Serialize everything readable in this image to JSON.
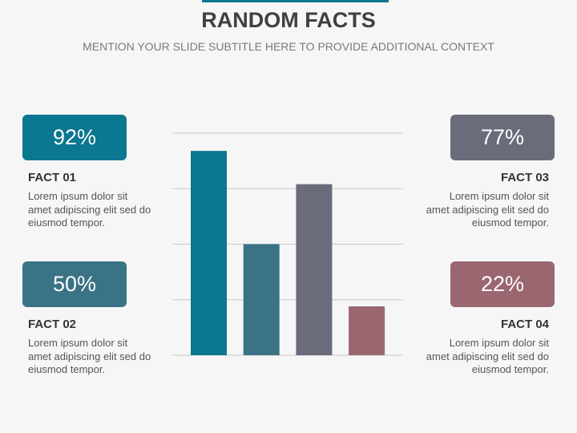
{
  "chart_data": {
    "type": "bar",
    "title": "RANDOM FACTS",
    "subtitle": "MENTION YOUR SLIDE SUBTITLE HERE TO PROVIDE ADDITIONAL CONTEXT",
    "categories": [
      "FACT 01",
      "FACT 02",
      "FACT 03",
      "FACT 04"
    ],
    "values": [
      92,
      50,
      77,
      22
    ],
    "value_labels": [
      "92%",
      "50%",
      "77%",
      "22%"
    ],
    "colors": [
      "#0b7790",
      "#3a7385",
      "#6a6c7b",
      "#9a6770"
    ],
    "descriptions": [
      "Lorem ipsum dolor sit amet adipiscing elit sed do eiusmod tempor.",
      "Lorem ipsum dolor sit amet adipiscing elit sed do eiusmod tempor.",
      "Lorem ipsum dolor sit amet adipiscing elit sed do eiusmod tempor.",
      "Lorem ipsum dolor sit amet adipiscing elit sed do eiusmod tempor."
    ],
    "ylim": [
      0,
      100
    ],
    "yticks": [
      0,
      25,
      50,
      75,
      100
    ],
    "grid": true
  }
}
